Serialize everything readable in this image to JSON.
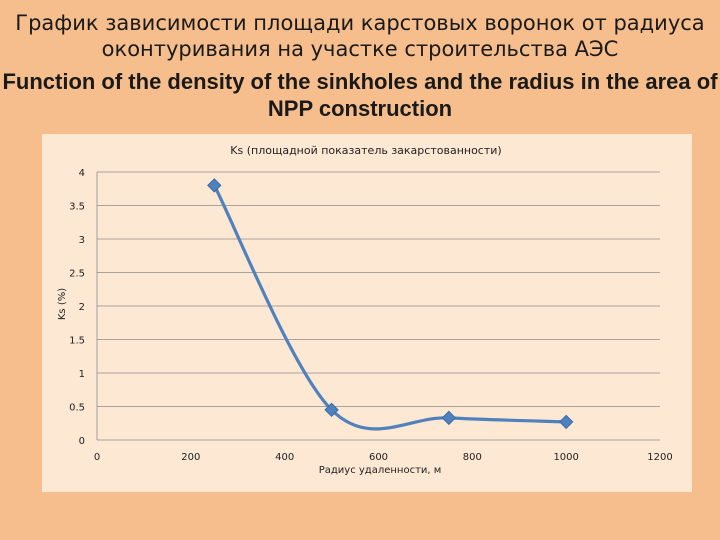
{
  "slide": {
    "title_ru": "График зависимости площади карстовых воронок от радиуса оконтуривания на участке строительства АЭС",
    "title_en": "Function of the density of the sinkholes and the radius in the area of NPP construction"
  },
  "chart_data": {
    "type": "line",
    "title": "Ks (площадной показатель закарстованности)",
    "xlabel": "Радиус удаленности, м",
    "ylabel": "Ks (%)",
    "xlim": [
      0,
      1200
    ],
    "ylim": [
      0,
      4
    ],
    "x_ticks": [
      0,
      200,
      400,
      600,
      800,
      1000,
      1200
    ],
    "y_ticks": [
      0,
      0.5,
      1,
      1.5,
      2,
      2.5,
      3,
      3.5,
      4
    ],
    "y_tick_labels": [
      "0",
      "0.5",
      "1",
      "1.5",
      "2",
      "2.5",
      "3",
      "3.5",
      "4"
    ],
    "grid": true,
    "smooth": true,
    "series": [
      {
        "color": "#4F81BD",
        "x": [
          250,
          500,
          750,
          1000
        ],
        "y": [
          3.8,
          0.45,
          0.33,
          0.27
        ]
      }
    ]
  }
}
